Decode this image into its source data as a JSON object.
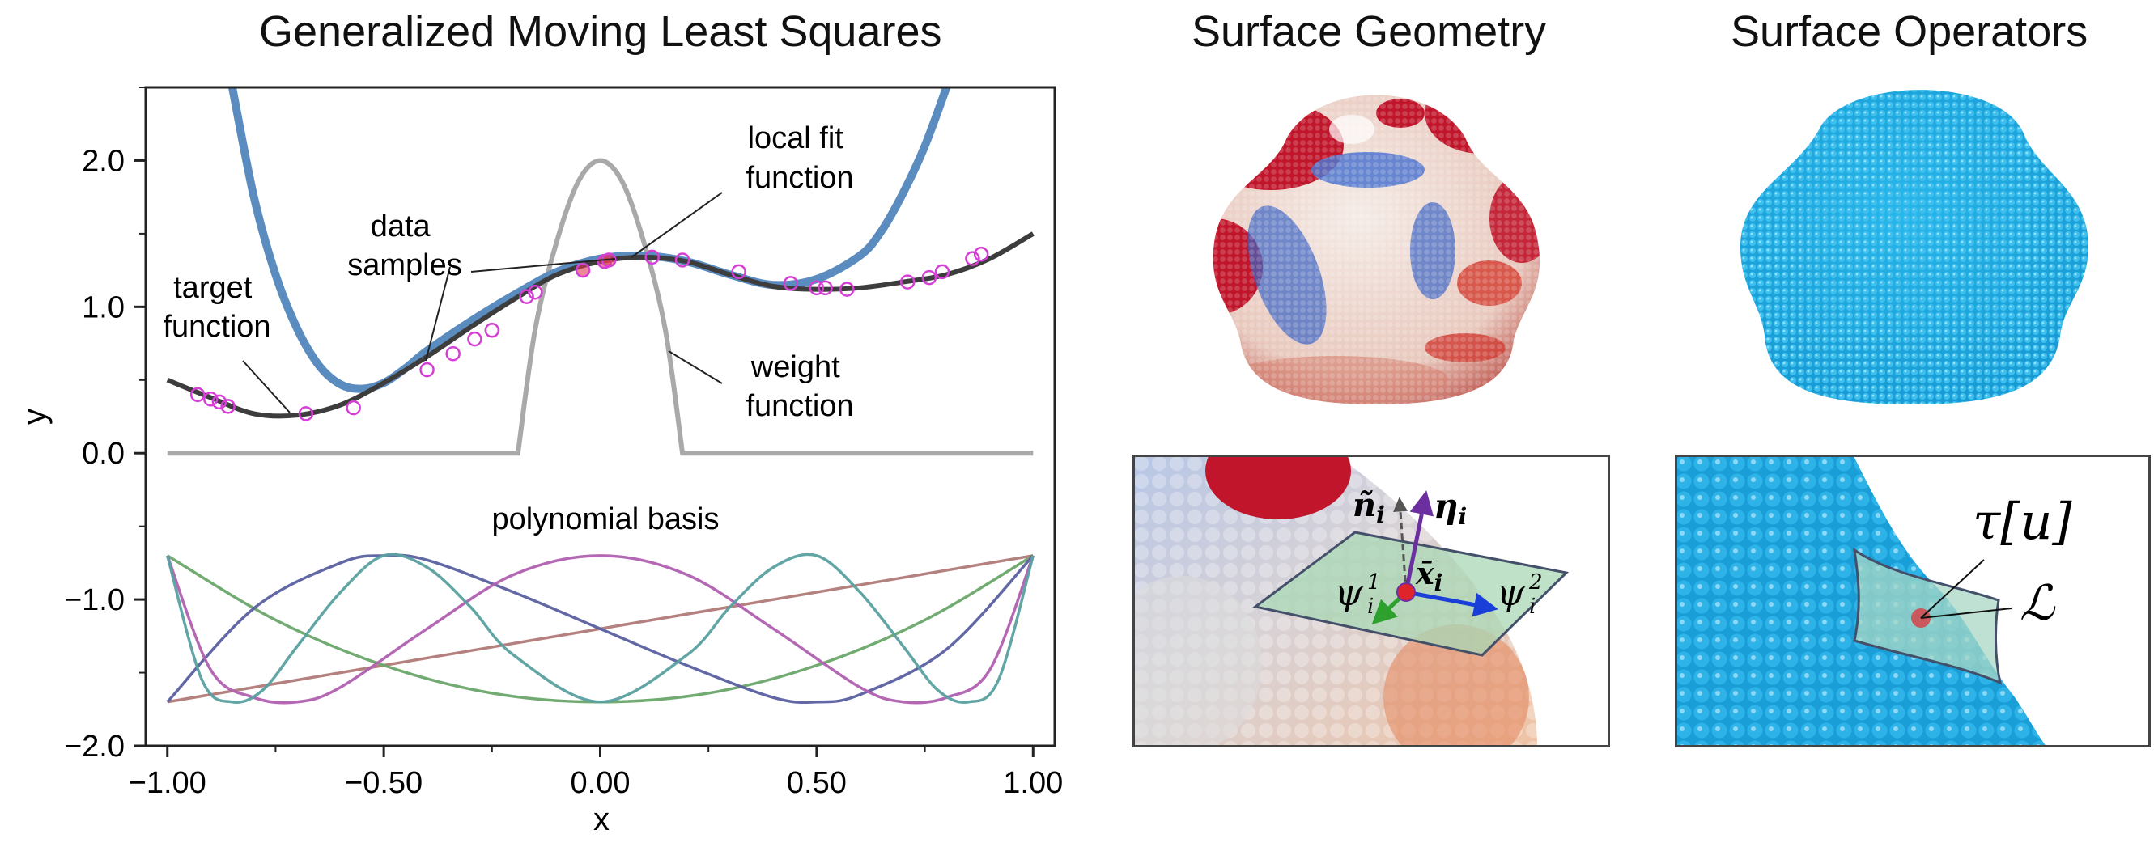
{
  "panels": {
    "gmls_title": "Generalized Moving Least Squares",
    "geometry_title": "Surface Geometry",
    "operators_title": "Surface Operators"
  },
  "axes": {
    "xlabel": "x",
    "ylabel": "y",
    "xticks": [
      "−1.00",
      "−0.50",
      "0.00",
      "0.50",
      "1.00"
    ],
    "yticks": [
      "2.0",
      "1.0",
      "0.0",
      "−1.0",
      "−2.0"
    ]
  },
  "annotations": {
    "target_function": [
      "target",
      "function"
    ],
    "data_samples": [
      "data",
      "samples"
    ],
    "local_fit_function": [
      "local fit",
      "function"
    ],
    "weight_function": [
      "weight",
      "function"
    ],
    "polynomial_basis": "polynomial basis"
  },
  "inset_geometry": {
    "n_label": "ñ",
    "n_sub": "i",
    "eta_label": "η",
    "eta_sub": "i",
    "x_label": "x̄",
    "x_sub": "i",
    "psi1_label": "ψ",
    "psi1_sub": "i",
    "psi1_sup": "1",
    "psi2_label": "ψ",
    "psi2_sub": "i",
    "psi2_sup": "2"
  },
  "inset_operators": {
    "tau_label": "τ[u]",
    "L_label": "ℒ"
  },
  "colors": {
    "target": "#3d3d3d",
    "local_fit": "#5b8cbf",
    "weight": "#a9a9a9",
    "samples": "#d63fd6",
    "operators_blue": "#1fa8dd",
    "geometry_red": "#c0152a",
    "geometry_blue": "#3a64c4"
  },
  "chart_data": {
    "type": "line",
    "title": "Generalized Moving Least Squares",
    "xlabel": "x",
    "ylabel": "y",
    "xlim": [
      -1.05,
      1.05
    ],
    "ylim": [
      -2.0,
      2.5
    ],
    "series": [
      {
        "name": "target function",
        "x": [
          -1.0,
          -0.9,
          -0.8,
          -0.7,
          -0.6,
          -0.5,
          -0.4,
          -0.3,
          -0.2,
          -0.1,
          0.0,
          0.1,
          0.2,
          0.3,
          0.4,
          0.5,
          0.6,
          0.7,
          0.8,
          0.9,
          1.0
        ],
        "y": [
          0.5,
          0.38,
          0.27,
          0.26,
          0.33,
          0.48,
          0.66,
          0.86,
          1.05,
          1.22,
          1.31,
          1.34,
          1.31,
          1.22,
          1.14,
          1.12,
          1.13,
          1.17,
          1.22,
          1.33,
          1.5
        ]
      },
      {
        "name": "local fit function",
        "x": [
          -0.85,
          -0.8,
          -0.75,
          -0.7,
          -0.65,
          -0.6,
          -0.55,
          -0.5,
          -0.45,
          -0.4,
          -0.3,
          -0.2,
          -0.1,
          0.0,
          0.1,
          0.2,
          0.3,
          0.4,
          0.5,
          0.6,
          0.65,
          0.7,
          0.75,
          0.8
        ],
        "y": [
          2.5,
          1.75,
          1.22,
          0.85,
          0.6,
          0.47,
          0.44,
          0.48,
          0.58,
          0.7,
          0.9,
          1.08,
          1.24,
          1.33,
          1.35,
          1.31,
          1.22,
          1.15,
          1.19,
          1.35,
          1.52,
          1.78,
          2.1,
          2.5
        ]
      },
      {
        "name": "weight function",
        "x": [
          -1.0,
          -0.19,
          -0.15,
          -0.1,
          -0.05,
          0.0,
          0.05,
          0.1,
          0.15,
          0.19,
          1.0
        ],
        "y": [
          0.0,
          0.0,
          0.85,
          1.45,
          1.86,
          2.0,
          1.86,
          1.45,
          0.85,
          0.0,
          0.0
        ]
      },
      {
        "name": "data samples",
        "x": [
          -0.93,
          -0.9,
          -0.88,
          -0.86,
          -0.68,
          -0.57,
          -0.4,
          -0.34,
          -0.29,
          -0.25,
          -0.17,
          -0.15,
          -0.04,
          0.01,
          0.02,
          0.12,
          0.19,
          0.32,
          0.44,
          0.5,
          0.52,
          0.57,
          0.71,
          0.76,
          0.79,
          0.86,
          0.88
        ],
        "y": [
          0.4,
          0.37,
          0.35,
          0.32,
          0.27,
          0.31,
          0.57,
          0.68,
          0.78,
          0.84,
          1.07,
          1.1,
          1.25,
          1.31,
          1.32,
          1.34,
          1.32,
          1.24,
          1.16,
          1.13,
          1.13,
          1.12,
          1.17,
          1.2,
          1.24,
          1.33,
          1.36
        ]
      }
    ],
    "basis": {
      "name": "polynomial basis",
      "curves": [
        {
          "color": "#b07a78",
          "x": [
            -1.0,
            -0.5,
            0.0,
            0.5,
            1.0
          ],
          "y": [
            -1.7,
            -1.45,
            -1.2,
            -0.95,
            -0.7
          ]
        },
        {
          "color": "#6aa66a",
          "x": [
            -1.0,
            -0.75,
            -0.5,
            -0.25,
            0.0,
            0.25,
            0.5,
            0.75,
            1.0
          ],
          "y": [
            -0.7,
            -1.14,
            -1.45,
            -1.64,
            -1.7,
            -1.64,
            -1.45,
            -1.14,
            -0.7
          ]
        },
        {
          "color": "#5a5fa0",
          "x": [
            -1.0,
            -0.8,
            -0.6,
            -0.5,
            -0.4,
            -0.2,
            0.0,
            0.2,
            0.4,
            0.5,
            0.6,
            0.8,
            1.0
          ],
          "y": [
            -1.7,
            -1.06,
            -0.75,
            -0.7,
            -0.73,
            -0.95,
            -1.2,
            -1.45,
            -1.67,
            -1.7,
            -1.65,
            -1.34,
            -0.7
          ]
        },
        {
          "color": "#b060b0",
          "x": [
            -1.0,
            -0.9,
            -0.8,
            -0.7,
            -0.6,
            -0.4,
            -0.2,
            0.0,
            0.2,
            0.4,
            0.6,
            0.7,
            0.8,
            0.9,
            1.0
          ],
          "y": [
            -0.7,
            -1.48,
            -1.67,
            -1.7,
            -1.6,
            -1.2,
            -0.83,
            -0.7,
            -0.83,
            -1.2,
            -1.6,
            -1.7,
            -1.67,
            -1.48,
            -0.7
          ]
        },
        {
          "color": "#5aa0a0",
          "x": [
            -1.0,
            -0.92,
            -0.85,
            -0.78,
            -0.7,
            -0.6,
            -0.5,
            -0.4,
            -0.3,
            -0.2,
            0.0,
            0.2,
            0.3,
            0.4,
            0.5,
            0.6,
            0.7,
            0.78,
            0.85,
            0.92,
            1.0
          ],
          "y": [
            -0.7,
            -1.55,
            -1.7,
            -1.62,
            -1.32,
            -0.95,
            -0.7,
            -0.78,
            -1.05,
            -1.38,
            -1.7,
            -1.38,
            -1.05,
            -0.78,
            -0.7,
            -0.95,
            -1.32,
            -1.62,
            -1.7,
            -1.55,
            -0.7
          ]
        }
      ]
    },
    "annotations": [
      "target function",
      "data samples",
      "local fit function",
      "weight function",
      "polynomial basis"
    ]
  }
}
